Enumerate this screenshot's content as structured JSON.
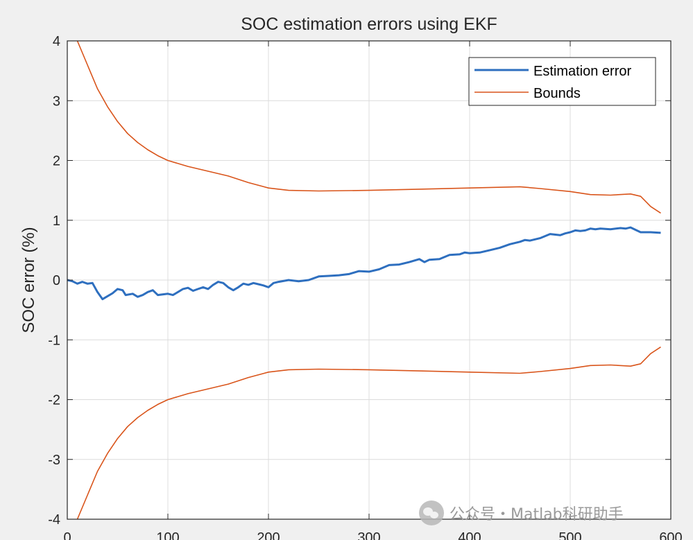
{
  "chart_data": {
    "type": "line",
    "title": "SOC estimation errors using EKF",
    "xlabel": "",
    "ylabel": "SOC error (%)",
    "xlim": [
      0,
      600
    ],
    "ylim": [
      -4,
      4
    ],
    "xticks": [
      0,
      100,
      200,
      300,
      400,
      500,
      600
    ],
    "yticks": [
      -4,
      -3,
      -2,
      -1,
      0,
      1,
      2,
      3,
      4
    ],
    "grid": true,
    "legend_position": "top-right",
    "series": [
      {
        "name": "Estimation error",
        "color": "#2e6fbf",
        "points": [
          [
            0,
            0.0
          ],
          [
            5,
            -0.02
          ],
          [
            10,
            -0.06
          ],
          [
            15,
            -0.03
          ],
          [
            20,
            -0.06
          ],
          [
            25,
            -0.05
          ],
          [
            30,
            -0.2
          ],
          [
            35,
            -0.32
          ],
          [
            40,
            -0.27
          ],
          [
            45,
            -0.22
          ],
          [
            50,
            -0.15
          ],
          [
            55,
            -0.17
          ],
          [
            58,
            -0.25
          ],
          [
            65,
            -0.23
          ],
          [
            70,
            -0.28
          ],
          [
            75,
            -0.25
          ],
          [
            80,
            -0.2
          ],
          [
            85,
            -0.17
          ],
          [
            90,
            -0.25
          ],
          [
            100,
            -0.23
          ],
          [
            105,
            -0.25
          ],
          [
            110,
            -0.2
          ],
          [
            115,
            -0.15
          ],
          [
            120,
            -0.13
          ],
          [
            125,
            -0.18
          ],
          [
            130,
            -0.15
          ],
          [
            135,
            -0.12
          ],
          [
            140,
            -0.15
          ],
          [
            145,
            -0.08
          ],
          [
            150,
            -0.03
          ],
          [
            155,
            -0.05
          ],
          [
            160,
            -0.12
          ],
          [
            165,
            -0.17
          ],
          [
            170,
            -0.12
          ],
          [
            175,
            -0.06
          ],
          [
            180,
            -0.08
          ],
          [
            185,
            -0.05
          ],
          [
            190,
            -0.07
          ],
          [
            195,
            -0.09
          ],
          [
            200,
            -0.12
          ],
          [
            205,
            -0.05
          ],
          [
            210,
            -0.03
          ],
          [
            220,
            0.0
          ],
          [
            230,
            -0.02
          ],
          [
            240,
            0.0
          ],
          [
            250,
            0.06
          ],
          [
            260,
            0.07
          ],
          [
            270,
            0.08
          ],
          [
            280,
            0.1
          ],
          [
            290,
            0.15
          ],
          [
            300,
            0.14
          ],
          [
            310,
            0.18
          ],
          [
            320,
            0.25
          ],
          [
            330,
            0.26
          ],
          [
            340,
            0.3
          ],
          [
            350,
            0.35
          ],
          [
            355,
            0.3
          ],
          [
            360,
            0.34
          ],
          [
            370,
            0.35
          ],
          [
            380,
            0.42
          ],
          [
            390,
            0.43
          ],
          [
            395,
            0.46
          ],
          [
            400,
            0.45
          ],
          [
            410,
            0.46
          ],
          [
            420,
            0.5
          ],
          [
            430,
            0.54
          ],
          [
            440,
            0.6
          ],
          [
            450,
            0.64
          ],
          [
            455,
            0.67
          ],
          [
            460,
            0.66
          ],
          [
            470,
            0.7
          ],
          [
            480,
            0.77
          ],
          [
            490,
            0.75
          ],
          [
            495,
            0.78
          ],
          [
            500,
            0.8
          ],
          [
            505,
            0.83
          ],
          [
            510,
            0.82
          ],
          [
            515,
            0.83
          ],
          [
            520,
            0.86
          ],
          [
            525,
            0.85
          ],
          [
            530,
            0.86
          ],
          [
            540,
            0.85
          ],
          [
            550,
            0.87
          ],
          [
            555,
            0.86
          ],
          [
            560,
            0.88
          ],
          [
            565,
            0.84
          ],
          [
            570,
            0.8
          ],
          [
            580,
            0.8
          ],
          [
            590,
            0.79
          ]
        ]
      },
      {
        "name": "Bounds",
        "color": "#d9541a",
        "points": [
          [
            10,
            4.0
          ],
          [
            20,
            3.6
          ],
          [
            30,
            3.2
          ],
          [
            40,
            2.9
          ],
          [
            50,
            2.65
          ],
          [
            60,
            2.45
          ],
          [
            70,
            2.3
          ],
          [
            80,
            2.18
          ],
          [
            90,
            2.08
          ],
          [
            100,
            2.0
          ],
          [
            120,
            1.9
          ],
          [
            140,
            1.82
          ],
          [
            160,
            1.74
          ],
          [
            180,
            1.63
          ],
          [
            200,
            1.54
          ],
          [
            220,
            1.5
          ],
          [
            250,
            1.49
          ],
          [
            300,
            1.5
          ],
          [
            350,
            1.52
          ],
          [
            400,
            1.54
          ],
          [
            450,
            1.56
          ],
          [
            470,
            1.53
          ],
          [
            500,
            1.48
          ],
          [
            520,
            1.43
          ],
          [
            540,
            1.42
          ],
          [
            560,
            1.44
          ],
          [
            570,
            1.4
          ],
          [
            580,
            1.23
          ],
          [
            590,
            1.12
          ]
        ]
      },
      {
        "name": "",
        "color": "#d9541a",
        "points": [
          [
            10,
            -4.0
          ],
          [
            20,
            -3.6
          ],
          [
            30,
            -3.2
          ],
          [
            40,
            -2.9
          ],
          [
            50,
            -2.65
          ],
          [
            60,
            -2.45
          ],
          [
            70,
            -2.3
          ],
          [
            80,
            -2.18
          ],
          [
            90,
            -2.08
          ],
          [
            100,
            -2.0
          ],
          [
            120,
            -1.9
          ],
          [
            140,
            -1.82
          ],
          [
            160,
            -1.74
          ],
          [
            180,
            -1.63
          ],
          [
            200,
            -1.54
          ],
          [
            220,
            -1.5
          ],
          [
            250,
            -1.49
          ],
          [
            300,
            -1.5
          ],
          [
            350,
            -1.52
          ],
          [
            400,
            -1.54
          ],
          [
            450,
            -1.56
          ],
          [
            470,
            -1.53
          ],
          [
            500,
            -1.48
          ],
          [
            520,
            -1.43
          ],
          [
            540,
            -1.42
          ],
          [
            560,
            -1.44
          ],
          [
            570,
            -1.4
          ],
          [
            580,
            -1.23
          ],
          [
            590,
            -1.12
          ]
        ]
      }
    ]
  },
  "watermark": {
    "icon": "wechat-icon",
    "text": "公众号・Matlab科研助手"
  }
}
